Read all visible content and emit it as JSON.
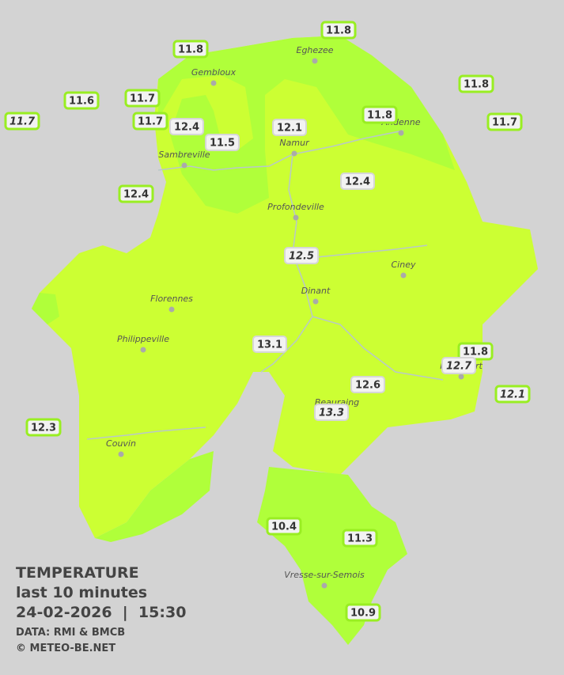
{
  "legend": {
    "title": "TEMPERATURE",
    "subtitle": "last 10 minutes",
    "datetime": "24-02-2026  |  15:30",
    "source": "DATA: RMI & BMCB",
    "credit": "© METEO-BE.NET"
  },
  "cities": [
    "Eghezee",
    "Gembloux",
    "Andenne",
    "Namur",
    "Sambreville",
    "Profondeville",
    "Ciney",
    "Dinant",
    "Florennes",
    "Philippeville",
    "Rochefort",
    "Beauraing",
    "Couvin",
    "Vresse-sur-Semois"
  ],
  "stations": [
    {
      "value": 11.8,
      "outlined": true,
      "italic": false
    },
    {
      "value": 11.8,
      "outlined": true,
      "italic": false
    },
    {
      "value": 11.6,
      "outlined": true,
      "italic": false
    },
    {
      "value": 11.7,
      "outlined": true,
      "italic": true
    },
    {
      "value": 11.7,
      "outlined": true,
      "italic": false
    },
    {
      "value": 11.7,
      "outlined": true,
      "italic": false
    },
    {
      "value": 12.4,
      "outlined": false,
      "italic": false
    },
    {
      "value": 11.5,
      "outlined": false,
      "italic": false
    },
    {
      "value": 12.1,
      "outlined": false,
      "italic": false
    },
    {
      "value": 11.8,
      "outlined": true,
      "italic": false
    },
    {
      "value": 11.8,
      "outlined": true,
      "italic": false
    },
    {
      "value": 11.7,
      "outlined": true,
      "italic": false
    },
    {
      "value": 12.4,
      "outlined": true,
      "italic": false
    },
    {
      "value": 12.4,
      "outlined": false,
      "italic": false
    },
    {
      "value": 12.5,
      "outlined": false,
      "italic": true
    },
    {
      "value": 13.1,
      "outlined": false,
      "italic": false
    },
    {
      "value": 11.8,
      "outlined": true,
      "italic": false
    },
    {
      "value": 12.7,
      "outlined": false,
      "italic": true
    },
    {
      "value": 12.1,
      "outlined": true,
      "italic": true
    },
    {
      "value": 12.6,
      "outlined": false,
      "italic": false
    },
    {
      "value": 13.3,
      "outlined": false,
      "italic": true
    },
    {
      "value": 12.3,
      "outlined": true,
      "italic": false
    },
    {
      "value": 10.4,
      "outlined": true,
      "italic": false
    },
    {
      "value": 11.3,
      "outlined": true,
      "italic": false
    },
    {
      "value": 10.9,
      "outlined": true,
      "italic": false
    }
  ]
}
